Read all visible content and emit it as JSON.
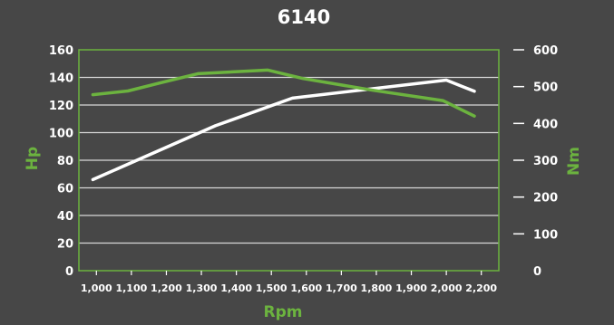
{
  "chart_data": {
    "type": "line",
    "title": "6140",
    "xlabel": "Rpm",
    "ylabel_left": "Hp",
    "ylabel_right": "Nm",
    "x_ticks": [
      "1,000",
      "1,100",
      "1,200",
      "1,300",
      "1,400",
      "1,500",
      "1,600",
      "1,700",
      "1,800",
      "1,900",
      "2,000",
      "2,200"
    ],
    "xlim": [
      0.5,
      12.5
    ],
    "y_left": {
      "range": [
        0,
        160
      ],
      "ticks": [
        "0",
        "20",
        "40",
        "60",
        "80",
        "100",
        "120",
        "140",
        "160"
      ]
    },
    "y_right": {
      "range": [
        0,
        600
      ],
      "ticks": [
        "0",
        "100",
        "200",
        "300",
        "400",
        "500",
        "600"
      ]
    },
    "grid": true,
    "series": [
      {
        "axis": "left",
        "color": "#ffffff",
        "x": [
          0.9,
          4.4,
          6.6,
          11.0,
          11.8
        ],
        "y": [
          66,
          105,
          125,
          138,
          130
        ]
      },
      {
        "axis": "right",
        "color": "#6cb33f",
        "x": [
          0.9,
          1.9,
          2.9,
          3.9,
          5.9,
          6.9,
          8.9,
          10.9,
          11.8
        ],
        "y": [
          478,
          488,
          512,
          535,
          545,
          522,
          490,
          462,
          420
        ]
      }
    ]
  },
  "colors": {
    "background": "#474747",
    "accent": "#6cb33f",
    "grid": "#d8d8d8"
  }
}
